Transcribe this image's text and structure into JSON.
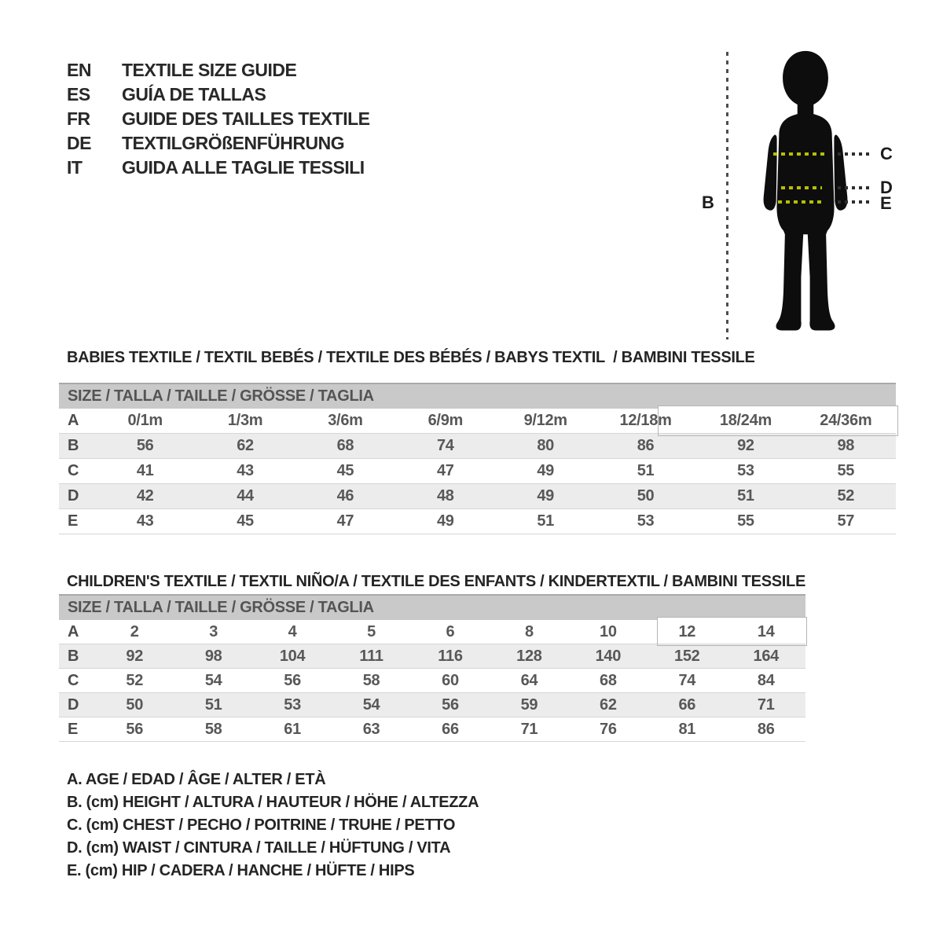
{
  "page": {
    "background": "#ffffff"
  },
  "languages": {
    "items": [
      {
        "code": "EN",
        "label": "TEXTILE SIZE GUIDE"
      },
      {
        "code": "ES",
        "label": "GUÍA DE TALLAS"
      },
      {
        "code": "FR",
        "label": "GUIDE DES TAILLES TEXTILE"
      },
      {
        "code": "DE",
        "label": "TEXTILGRÖßENFÜHRUNG"
      },
      {
        "code": "IT",
        "label": "GUIDA ALLE TAGLIE TESSILI"
      }
    ]
  },
  "figure": {
    "height_label": "B",
    "chest_label": "C",
    "waist_label": "D",
    "hip_label": "E",
    "measure_line_color": "#b4c000",
    "silhouette_color": "#0d0d0d"
  },
  "babies_table": {
    "title": "BABIES TEXTILE / TEXTIL BEBÉS / TEXTILE DES BÉBÉS / BABYS TEXTIL  / BAMBINI TESSILE",
    "header": "SIZE / TALLA / TAILLE / GRÖSSE / TAGLIA",
    "header_bg": "#c9c9c9",
    "stripe_bg": "#ececec",
    "rows": [
      {
        "label": "A",
        "values": [
          "0/1m",
          "1/3m",
          "3/6m",
          "6/9m",
          "9/12m",
          "12/18m",
          "18/24m",
          "24/36m"
        ]
      },
      {
        "label": "B",
        "values": [
          "56",
          "62",
          "68",
          "74",
          "80",
          "86",
          "92",
          "98"
        ]
      },
      {
        "label": "C",
        "values": [
          "41",
          "43",
          "45",
          "47",
          "49",
          "51",
          "53",
          "55"
        ]
      },
      {
        "label": "D",
        "values": [
          "42",
          "44",
          "46",
          "48",
          "49",
          "50",
          "51",
          "52"
        ]
      },
      {
        "label": "E",
        "values": [
          "43",
          "45",
          "47",
          "49",
          "51",
          "53",
          "55",
          "57"
        ]
      }
    ]
  },
  "children_table": {
    "title": "CHILDREN'S TEXTILE / TEXTIL NIÑO/A / TEXTILE DES ENFANTS / KINDERTEXTIL / BAMBINI TESSILE",
    "header": "SIZE / TALLA / TAILLE / GRÖSSE / TAGLIA",
    "header_bg": "#c9c9c9",
    "stripe_bg": "#ececec",
    "rows": [
      {
        "label": "A",
        "values": [
          "2",
          "3",
          "4",
          "5",
          "6",
          "8",
          "10",
          "12",
          "14"
        ]
      },
      {
        "label": "B",
        "values": [
          "92",
          "98",
          "104",
          "111",
          "116",
          "128",
          "140",
          "152",
          "164"
        ]
      },
      {
        "label": "C",
        "values": [
          "52",
          "54",
          "56",
          "58",
          "60",
          "64",
          "68",
          "74",
          "84"
        ]
      },
      {
        "label": "D",
        "values": [
          "50",
          "51",
          "53",
          "54",
          "56",
          "59",
          "62",
          "66",
          "71"
        ]
      },
      {
        "label": "E",
        "values": [
          "56",
          "58",
          "61",
          "63",
          "66",
          "71",
          "76",
          "81",
          "86"
        ]
      }
    ]
  },
  "legend": {
    "items": [
      "A. AGE / EDAD / ÂGE / ALTER / ETÀ",
      "B. (cm) HEIGHT / ALTURA / HAUTEUR / HÖHE / ALTEZZA",
      "C. (cm) CHEST / PECHO / POITRINE / TRUHE / PETTO",
      "D. (cm) WAIST / CINTURA / TAILLE / HÜFTUNG / VITA",
      "E. (cm) HIP / CADERA / HANCHE / HÜFTE / HIPS"
    ]
  }
}
